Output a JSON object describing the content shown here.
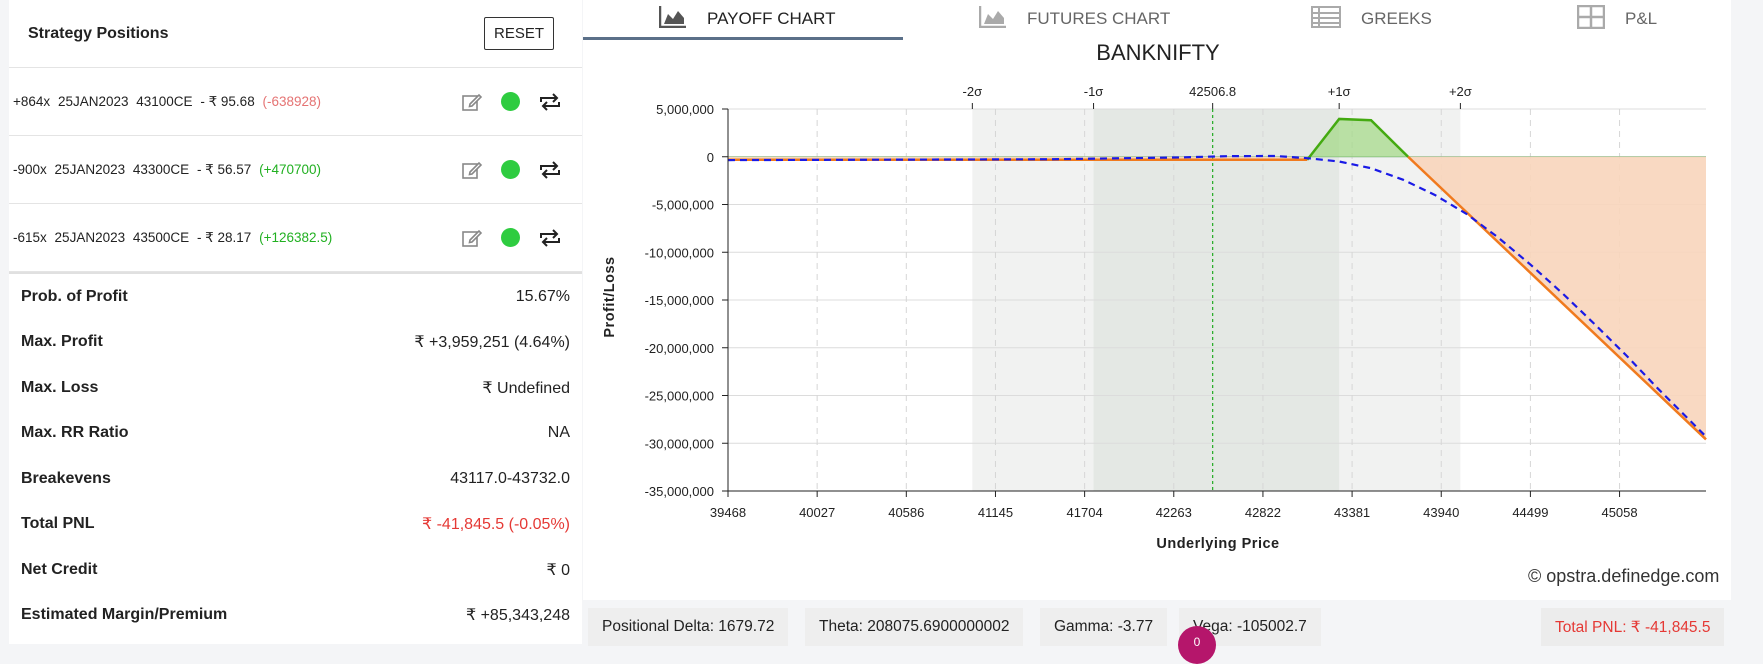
{
  "strategy": {
    "title": "Strategy Positions",
    "reset_label": "RESET",
    "positions": [
      {
        "qty": "+864x",
        "expiry": "25JAN2023",
        "strike": "43100CE",
        "price": "- ₹ 95.68",
        "pnl": "(-638928)",
        "pnl_sign": "neg"
      },
      {
        "qty": "-900x",
        "expiry": "25JAN2023",
        "strike": "43300CE",
        "price": "- ₹ 56.57",
        "pnl": "(+470700)",
        "pnl_sign": "pos"
      },
      {
        "qty": "-615x",
        "expiry": "25JAN2023",
        "strike": "43500CE",
        "price": "- ₹ 28.17",
        "pnl": "(+126382.5)",
        "pnl_sign": "pos"
      }
    ],
    "stats": [
      {
        "label": "Prob. of Profit",
        "value": "15.67%"
      },
      {
        "label": "Max. Profit",
        "value": "₹ +3,959,251 (4.64%)"
      },
      {
        "label": "Max. Loss",
        "value": "₹ Undefined"
      },
      {
        "label": "Max. RR Ratio",
        "value": "NA"
      },
      {
        "label": "Breakevens",
        "value": "43117.0-43732.0"
      },
      {
        "label": "Total PNL",
        "value": "₹ -41,845.5 (-0.05%)"
      },
      {
        "label": "Net Credit",
        "value": "₹ 0"
      },
      {
        "label": "Estimated Margin/Premium",
        "value": "₹ +85,343,248"
      }
    ]
  },
  "tabs": [
    {
      "label": "PAYOFF CHART",
      "icon": "area-chart-icon",
      "active": true
    },
    {
      "label": "FUTURES CHART",
      "icon": "area-chart-icon",
      "active": false
    },
    {
      "label": "GREEKS",
      "icon": "list-icon",
      "active": false
    },
    {
      "label": "P&L",
      "icon": "grid-icon",
      "active": false
    }
  ],
  "colors": {
    "payoff_line": "#f07a1e",
    "today_line": "#1a1ae6",
    "profit_fill": "#a6d98a",
    "loss_fill": "#f8d5bb",
    "profit_stroke": "#44aa11",
    "spot_line": "#22aa22",
    "sigma1_band": "#e4e8e4",
    "sigma2_band": "#f1f2f1"
  },
  "chart_data": {
    "type": "line",
    "title": "BANKNIFTY",
    "xlabel": "Underlying Price",
    "ylabel": "Profit/Loss",
    "xlim": [
      39468,
      45600
    ],
    "ylim": [
      -35000000,
      5000000
    ],
    "x_ticks": [
      39468,
      40027,
      40586,
      41145,
      41704,
      42263,
      42822,
      43381,
      43940,
      44499,
      45058
    ],
    "x_tick_labels": [
      "39468",
      "40027",
      "40586",
      "41145",
      "41704",
      "42263",
      "42822",
      "43381",
      "43940",
      "44499",
      "45058"
    ],
    "y_ticks": [
      5000000,
      0,
      -5000000,
      -10000000,
      -15000000,
      -20000000,
      -25000000,
      -30000000,
      -35000000
    ],
    "y_tick_labels": [
      "5,000,000",
      "0",
      "-5,000,000",
      "-10,000,000",
      "-15,000,000",
      "-20,000,000",
      "-25,000,000",
      "-30,000,000",
      "-35,000,000"
    ],
    "sigma_markers": [
      {
        "label": "-2σ",
        "x": 41000
      },
      {
        "label": "-1σ",
        "x": 41760
      },
      {
        "label": "42506.8",
        "x": 42506.8
      },
      {
        "label": "+1σ",
        "x": 43300
      },
      {
        "label": "+2σ",
        "x": 44060
      }
    ],
    "spot": 42506.8,
    "series": [
      {
        "key": "expiry",
        "x": [
          39468,
          43100,
          43300,
          43500,
          43732,
          45600
        ],
        "y": [
          -318000,
          -318000,
          3959251,
          3820000,
          0,
          -29600000
        ]
      },
      {
        "key": "today",
        "x": [
          39468,
          41500,
          42300,
          42600,
          42900,
          43100,
          43300,
          43500,
          43700,
          43900,
          44100,
          44300,
          44500,
          44700,
          44900,
          45100,
          45300,
          45600
        ],
        "y": [
          -350000,
          -260000,
          -70000,
          60000,
          80000,
          -150000,
          -500000,
          -1200000,
          -2400000,
          -4000000,
          -6000000,
          -8500000,
          -11300000,
          -14300000,
          -17500000,
          -20800000,
          -24300000,
          -29300000
        ]
      }
    ],
    "grid": true
  },
  "greeks": {
    "delta": "Positional Delta: 1679.72",
    "theta": "Theta: 208075.6900000002",
    "gamma": "Gamma: -3.77",
    "vega": "Vega: -105002.7",
    "total_pnl": "Total PNL: ₹ -41,845.5"
  },
  "badge_count": "0",
  "credit": "opstra.definedge.com"
}
